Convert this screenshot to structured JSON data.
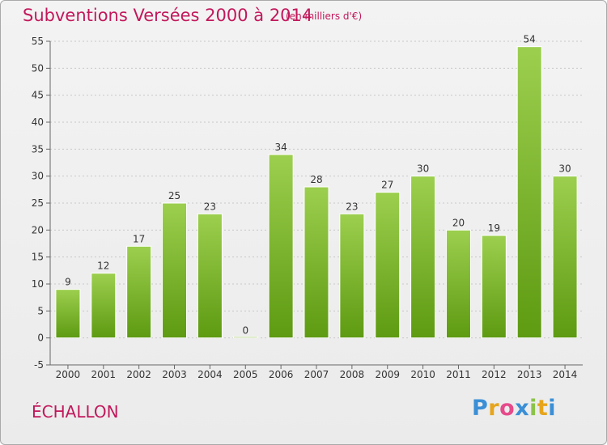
{
  "title": "Subventions Versées 2000 à 2014",
  "subtitle": "(en milliers d'€)",
  "commune": "ÉCHALLON",
  "brand": {
    "letters": [
      "P",
      "r",
      "o",
      "x",
      "i",
      "t",
      "i"
    ],
    "colors": [
      "#3a8fd6",
      "#e6a51c",
      "#e64a8a",
      "#3a8fd6",
      "#8bc34a",
      "#e6a51c",
      "#3a8fd6"
    ]
  },
  "chart_data": {
    "type": "bar",
    "categories": [
      "2000",
      "2001",
      "2002",
      "2003",
      "2004",
      "2005",
      "2006",
      "2007",
      "2008",
      "2009",
      "2010",
      "2011",
      "2012",
      "2013",
      "2014"
    ],
    "values": [
      9,
      12,
      17,
      25,
      23,
      0,
      34,
      28,
      23,
      27,
      30,
      20,
      19,
      54,
      30
    ],
    "ylim": [
      -5,
      55
    ],
    "yticks": [
      -5,
      0,
      5,
      10,
      15,
      20,
      25,
      30,
      35,
      40,
      45,
      50,
      55
    ],
    "grid": true,
    "bar_color": "#7cc02c"
  }
}
